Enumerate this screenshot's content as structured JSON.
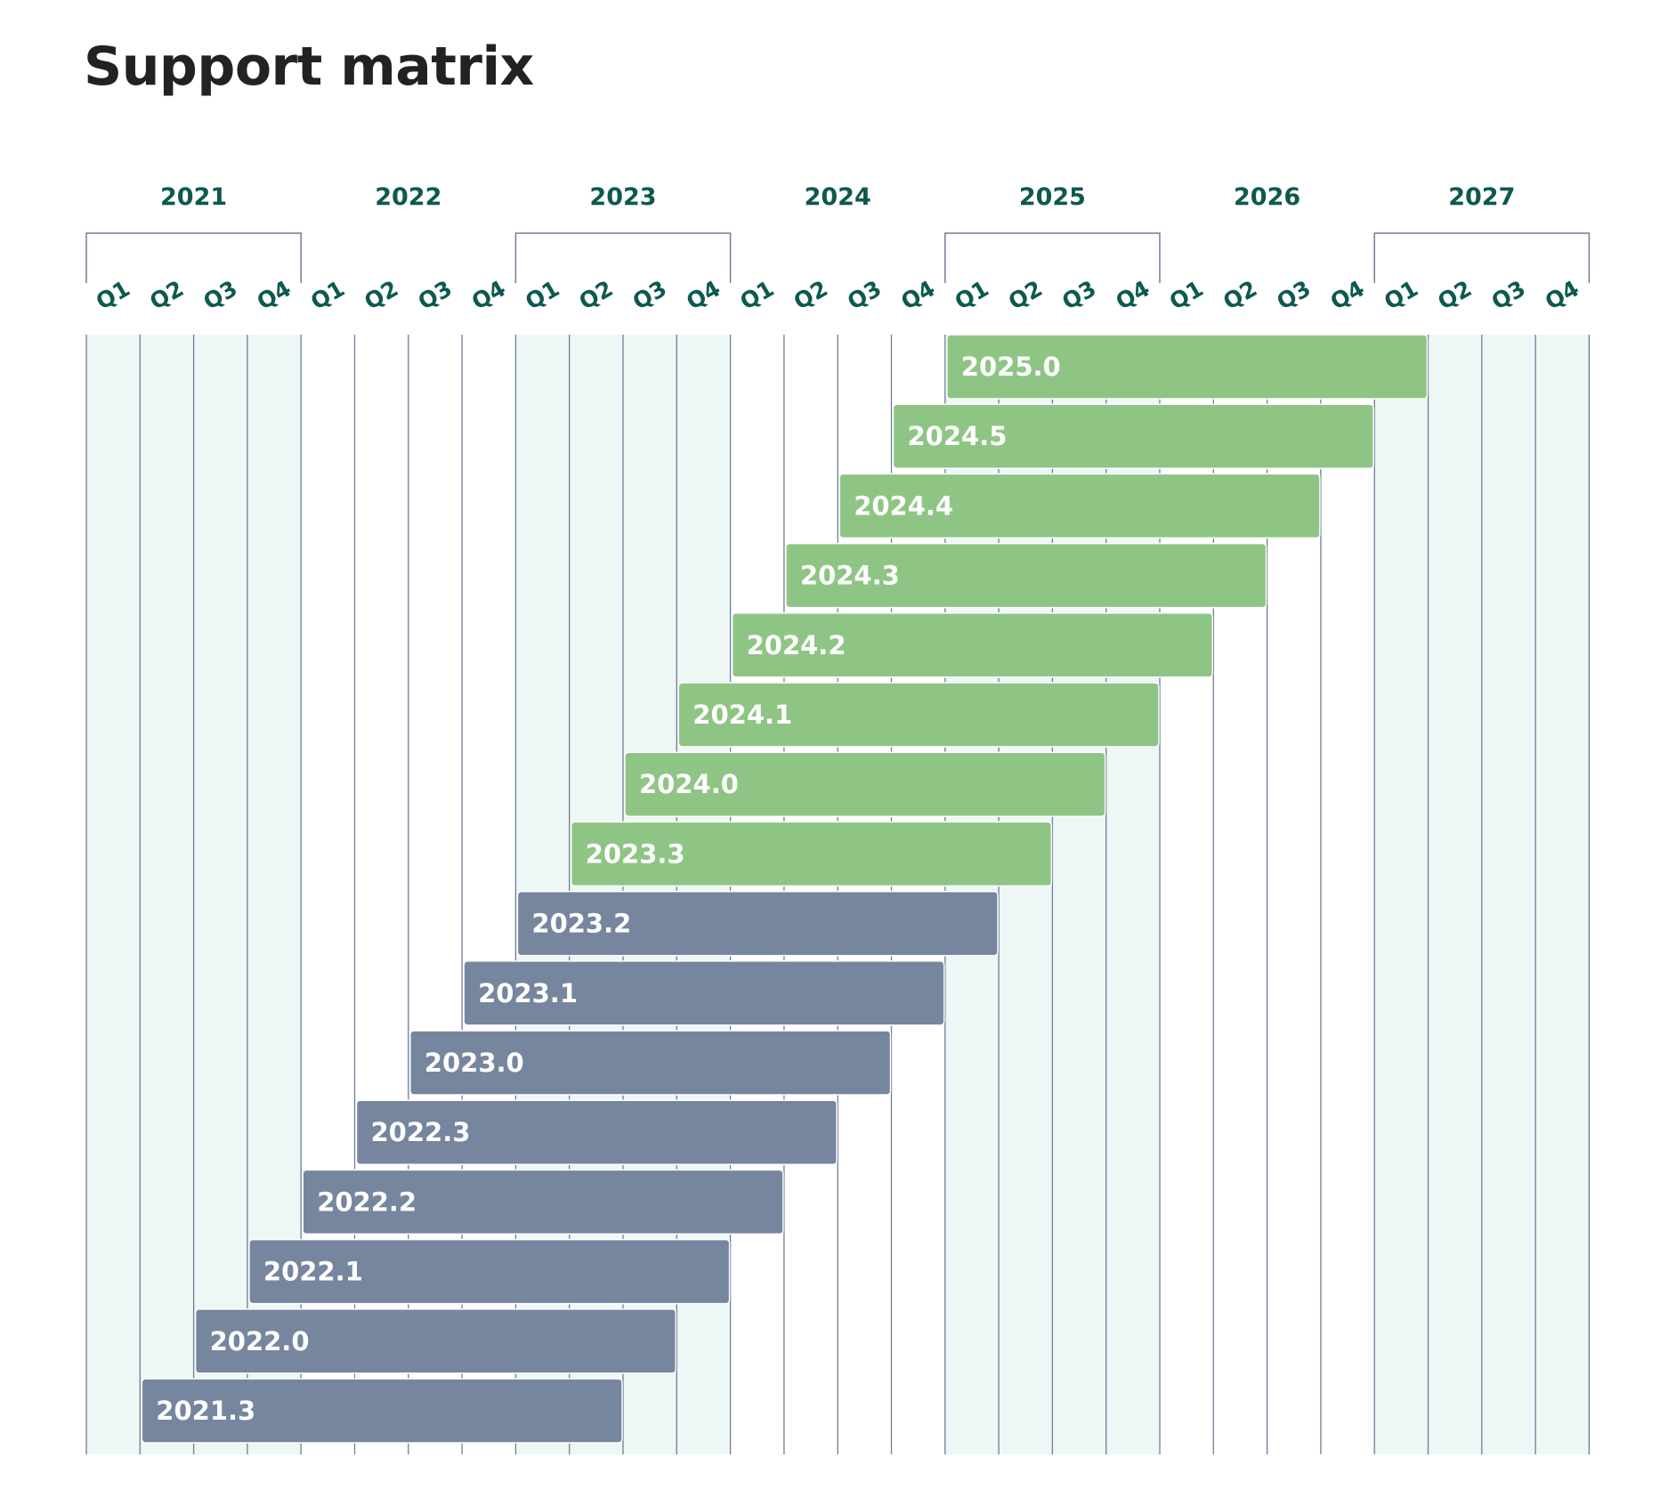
{
  "title": "Support matrix",
  "chart_data": {
    "type": "gantt",
    "title": "Support matrix",
    "years": [
      "2021",
      "2022",
      "2023",
      "2024",
      "2025",
      "2026",
      "2027"
    ],
    "quarters": [
      "Q1",
      "Q2",
      "Q3",
      "Q4"
    ],
    "x_range": [
      "2021-Q1",
      "2027-Q4"
    ],
    "colors": {
      "current": "#8fc584",
      "legacy": "#77869f",
      "grid_line": "#6f7d97",
      "band_fill": "#edf7f5",
      "label": "#0d5950"
    },
    "releases": [
      {
        "version": "2025.0",
        "start": "2025-Q1",
        "end": "2027-Q1",
        "status": "current"
      },
      {
        "version": "2024.5",
        "start": "2024-Q4",
        "end": "2026-Q4",
        "status": "current"
      },
      {
        "version": "2024.4",
        "start": "2024-Q3",
        "end": "2026-Q3",
        "status": "current"
      },
      {
        "version": "2024.3",
        "start": "2024-Q2",
        "end": "2026-Q2",
        "status": "current"
      },
      {
        "version": "2024.2",
        "start": "2024-Q1",
        "end": "2026-Q1",
        "status": "current"
      },
      {
        "version": "2024.1",
        "start": "2023-Q4",
        "end": "2025-Q4",
        "status": "current"
      },
      {
        "version": "2024.0",
        "start": "2023-Q3",
        "end": "2025-Q3",
        "status": "current"
      },
      {
        "version": "2023.3",
        "start": "2023-Q2",
        "end": "2025-Q2",
        "status": "current"
      },
      {
        "version": "2023.2",
        "start": "2023-Q1",
        "end": "2025-Q1",
        "status": "legacy"
      },
      {
        "version": "2023.1",
        "start": "2022-Q4",
        "end": "2024-Q4",
        "status": "legacy"
      },
      {
        "version": "2023.0",
        "start": "2022-Q3",
        "end": "2024-Q3",
        "status": "legacy"
      },
      {
        "version": "2022.3",
        "start": "2022-Q2",
        "end": "2024-Q2",
        "status": "legacy"
      },
      {
        "version": "2022.2",
        "start": "2022-Q1",
        "end": "2024-Q1",
        "status": "legacy"
      },
      {
        "version": "2022.1",
        "start": "2021-Q4",
        "end": "2023-Q4",
        "status": "legacy"
      },
      {
        "version": "2022.0",
        "start": "2021-Q3",
        "end": "2023-Q3",
        "status": "legacy"
      },
      {
        "version": "2021.3",
        "start": "2021-Q2",
        "end": "2023-Q2",
        "status": "legacy"
      }
    ]
  }
}
